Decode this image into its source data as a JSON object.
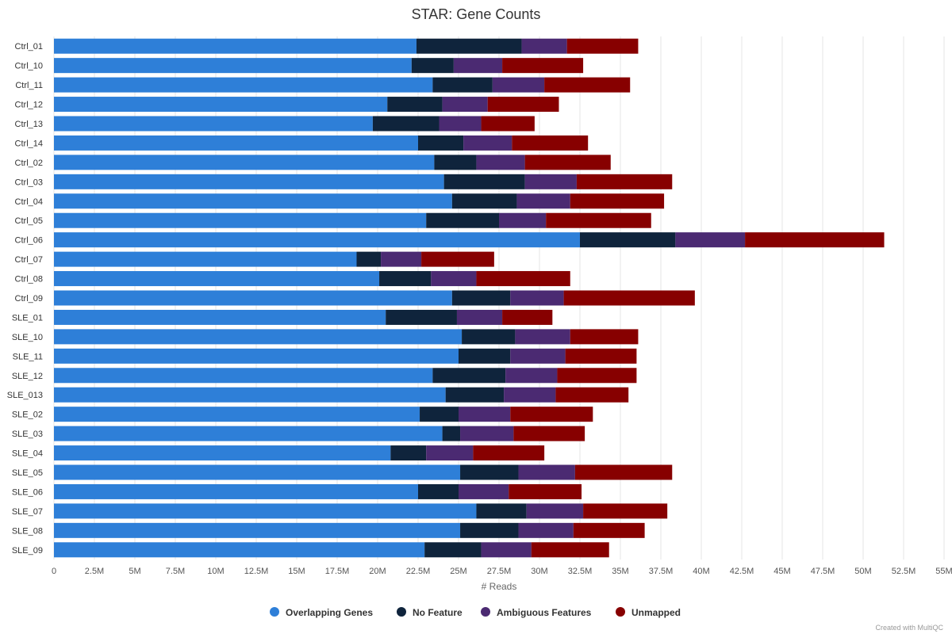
{
  "chart_data": {
    "type": "bar",
    "orientation": "horizontal",
    "stacked": true,
    "title": "STAR: Gene Counts",
    "xlabel": "# Reads",
    "xlim": [
      0,
      55000000
    ],
    "x_tick_labels": [
      "0",
      "2.5M",
      "5M",
      "7.5M",
      "10M",
      "12.5M",
      "15M",
      "17.5M",
      "20M",
      "22.5M",
      "25M",
      "27.5M",
      "30M",
      "32.5M",
      "35M",
      "37.5M",
      "40M",
      "42.5M",
      "45M",
      "47.5M",
      "50M",
      "52.5M",
      "55M"
    ],
    "grid": true,
    "legend_position": "bottom-center",
    "categories": [
      "Ctrl_01",
      "Ctrl_10",
      "Ctrl_11",
      "Ctrl_12",
      "Ctrl_13",
      "Ctrl_14",
      "Ctrl_02",
      "Ctrl_03",
      "Ctrl_04",
      "Ctrl_05",
      "Ctrl_06",
      "Ctrl_07",
      "Ctrl_08",
      "Ctrl_09",
      "SLE_01",
      "SLE_10",
      "SLE_11",
      "SLE_12",
      "SLE_013",
      "SLE_02",
      "SLE_03",
      "SLE_04",
      "SLE_05",
      "SLE_06",
      "SLE_07",
      "SLE_08",
      "SLE_09"
    ],
    "series": [
      {
        "name": "Overlapping Genes",
        "color": "#2e7fd8",
        "values": [
          22400000,
          22100000,
          23400000,
          20600000,
          19700000,
          22500000,
          23500000,
          24100000,
          24600000,
          23000000,
          32500000,
          18700000,
          20100000,
          24600000,
          20500000,
          25200000,
          25000000,
          23400000,
          24200000,
          22600000,
          24000000,
          20800000,
          25100000,
          22500000,
          26100000,
          25100000,
          22900000
        ]
      },
      {
        "name": "No Feature",
        "color": "#0f243c",
        "values": [
          6500000,
          2600000,
          3700000,
          3400000,
          4100000,
          2800000,
          2600000,
          5000000,
          4000000,
          4500000,
          5900000,
          1500000,
          3200000,
          3600000,
          4400000,
          3300000,
          3200000,
          4500000,
          3600000,
          2400000,
          1100000,
          2200000,
          3600000,
          2500000,
          3100000,
          3600000,
          3500000
        ]
      },
      {
        "name": "Ambiguous Features",
        "color": "#4b2a72",
        "values": [
          2800000,
          3000000,
          3200000,
          2800000,
          2600000,
          3000000,
          3000000,
          3200000,
          3300000,
          2900000,
          4300000,
          2500000,
          2800000,
          3300000,
          2800000,
          3400000,
          3400000,
          3200000,
          3200000,
          3200000,
          3300000,
          2900000,
          3500000,
          3100000,
          3500000,
          3400000,
          3100000
        ]
      },
      {
        "name": "Unmapped",
        "color": "#870000",
        "values": [
          4400000,
          5000000,
          5300000,
          4400000,
          3300000,
          4700000,
          5300000,
          5900000,
          5800000,
          6500000,
          8600000,
          4500000,
          5800000,
          8100000,
          3100000,
          4200000,
          4400000,
          4900000,
          4500000,
          5100000,
          4400000,
          4400000,
          6000000,
          4500000,
          5200000,
          4400000,
          4800000
        ]
      }
    ]
  },
  "footer": {
    "credit": "Created with MultiQC"
  }
}
